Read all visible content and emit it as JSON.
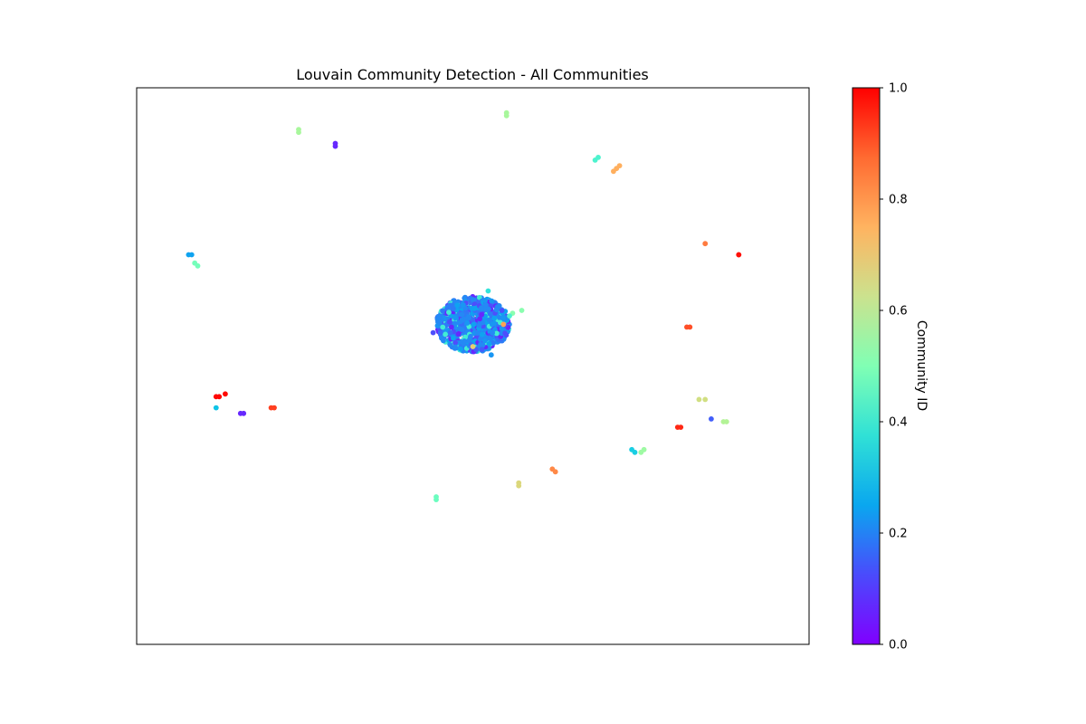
{
  "chart_data": {
    "type": "scatter",
    "title": "Louvain Community Detection - All Communities",
    "colorbar": {
      "label": "Community ID",
      "colormap": "rainbow",
      "range": [
        0.0,
        1.0
      ],
      "ticks": [
        "0.0",
        "0.2",
        "0.4",
        "0.6",
        "0.8",
        "1.0"
      ]
    },
    "axes_visible": false,
    "grid": false,
    "nodes": [
      {
        "x": -0.57,
        "y": 0.85,
        "c": 0.58
      },
      {
        "x": -0.57,
        "y": 0.84,
        "c": 0.58
      },
      {
        "x": -0.45,
        "y": 0.8,
        "c": 0.05
      },
      {
        "x": -0.45,
        "y": 0.79,
        "c": 0.05
      },
      {
        "x": 0.11,
        "y": 0.91,
        "c": 0.58
      },
      {
        "x": 0.11,
        "y": 0.9,
        "c": 0.58
      },
      {
        "x": 0.4,
        "y": 0.74,
        "c": 0.4
      },
      {
        "x": 0.41,
        "y": 0.75,
        "c": 0.4
      },
      {
        "x": 0.46,
        "y": 0.7,
        "c": 0.76
      },
      {
        "x": 0.47,
        "y": 0.71,
        "c": 0.76
      },
      {
        "x": 0.48,
        "y": 0.72,
        "c": 0.76
      },
      {
        "x": 0.76,
        "y": 0.44,
        "c": 0.84
      },
      {
        "x": 0.87,
        "y": 0.4,
        "c": 0.98
      },
      {
        "x": 0.87,
        "y": 0.4,
        "c": 0.98
      },
      {
        "x": -0.93,
        "y": 0.4,
        "c": 0.22
      },
      {
        "x": -0.92,
        "y": 0.4,
        "c": 0.22
      },
      {
        "x": -0.91,
        "y": 0.37,
        "c": 0.48
      },
      {
        "x": -0.9,
        "y": 0.36,
        "c": 0.48
      },
      {
        "x": 0.7,
        "y": 0.14,
        "c": 0.9
      },
      {
        "x": 0.71,
        "y": 0.14,
        "c": 0.9
      },
      {
        "x": -0.84,
        "y": -0.11,
        "c": 0.99
      },
      {
        "x": -0.83,
        "y": -0.11,
        "c": 0.99
      },
      {
        "x": -0.81,
        "y": -0.1,
        "c": 0.99
      },
      {
        "x": -0.84,
        "y": -0.15,
        "c": 0.28
      },
      {
        "x": -0.75,
        "y": -0.17,
        "c": 0.05
      },
      {
        "x": -0.76,
        "y": -0.17,
        "c": 0.05
      },
      {
        "x": -0.66,
        "y": -0.15,
        "c": 0.92
      },
      {
        "x": -0.65,
        "y": -0.15,
        "c": 0.92
      },
      {
        "x": 0.74,
        "y": -0.12,
        "c": 0.66
      },
      {
        "x": 0.76,
        "y": -0.12,
        "c": 0.66
      },
      {
        "x": 0.78,
        "y": -0.19,
        "c": 0.12
      },
      {
        "x": 0.82,
        "y": -0.2,
        "c": 0.6
      },
      {
        "x": 0.83,
        "y": -0.2,
        "c": 0.6
      },
      {
        "x": 0.67,
        "y": -0.22,
        "c": 0.95
      },
      {
        "x": 0.68,
        "y": -0.22,
        "c": 0.95
      },
      {
        "x": 0.52,
        "y": -0.3,
        "c": 0.3
      },
      {
        "x": 0.53,
        "y": -0.31,
        "c": 0.3
      },
      {
        "x": 0.56,
        "y": -0.3,
        "c": 0.56
      },
      {
        "x": 0.55,
        "y": -0.31,
        "c": 0.56
      },
      {
        "x": 0.26,
        "y": -0.37,
        "c": 0.82
      },
      {
        "x": 0.27,
        "y": -0.38,
        "c": 0.82
      },
      {
        "x": 0.15,
        "y": -0.42,
        "c": 0.68
      },
      {
        "x": 0.15,
        "y": -0.43,
        "c": 0.68
      },
      {
        "x": -0.12,
        "y": -0.48,
        "c": 0.46
      },
      {
        "x": -0.12,
        "y": -0.47,
        "c": 0.46
      }
    ],
    "main_cluster": {
      "center": [
        0.0,
        0.15
      ],
      "radius": [
        0.12,
        0.1
      ],
      "dominant_community": 0.18,
      "outliers": [
        {
          "x": 0.16,
          "y": 0.2,
          "c": 0.52
        },
        {
          "x": 0.13,
          "y": 0.19,
          "c": 0.52
        },
        {
          "x": 0.1,
          "y": 0.15,
          "c": 0.78
        },
        {
          "x": -0.13,
          "y": 0.12,
          "c": 0.1
        },
        {
          "x": 0.01,
          "y": 0.06,
          "c": 0.12
        },
        {
          "x": 0.03,
          "y": 0.06,
          "c": 0.12
        },
        {
          "x": 0.06,
          "y": 0.04,
          "c": 0.2
        },
        {
          "x": 0.05,
          "y": 0.27,
          "c": 0.35
        },
        {
          "x": 0.12,
          "y": 0.18,
          "c": 0.4
        },
        {
          "x": 0.0,
          "y": 0.07,
          "c": 0.7
        },
        {
          "x": -0.07,
          "y": 0.14,
          "c": 0.05
        }
      ]
    }
  }
}
